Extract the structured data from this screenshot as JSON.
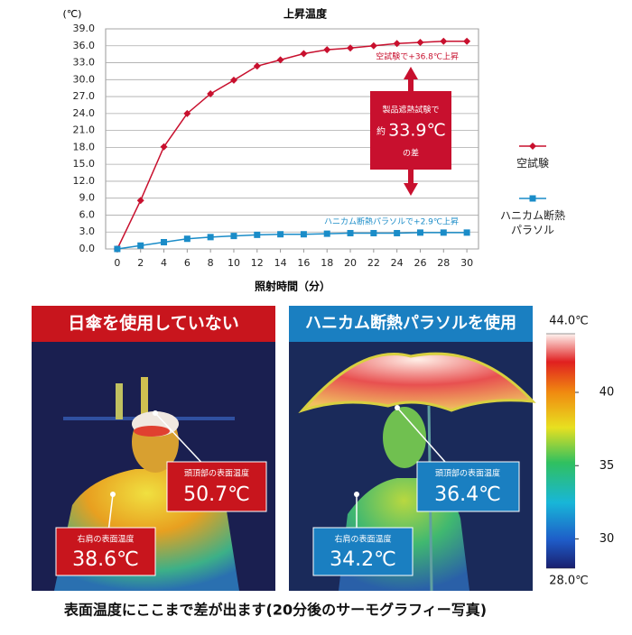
{
  "chart_data": {
    "type": "line",
    "title": "上昇温度",
    "y_unit_label": "(℃)",
    "x_label": "照射時間（分）",
    "x": [
      0,
      2,
      4,
      6,
      8,
      10,
      12,
      14,
      16,
      18,
      20,
      22,
      24,
      26,
      28,
      30
    ],
    "xlim": [
      -1,
      31
    ],
    "xticks": [
      0,
      2,
      4,
      6,
      8,
      10,
      12,
      14,
      16,
      18,
      20,
      22,
      24,
      26,
      28,
      30
    ],
    "ylim": [
      0,
      39
    ],
    "yticks": [
      {
        "value": 0,
        "label": "0.0"
      },
      {
        "value": 3,
        "label": "3.0"
      },
      {
        "value": 6,
        "label": "6.0"
      },
      {
        "value": 9,
        "label": "9.0"
      },
      {
        "value": 12,
        "label": "12.0"
      },
      {
        "value": 15,
        "label": "15.0"
      },
      {
        "value": 18,
        "label": "18.0"
      },
      {
        "value": 21,
        "label": "21.0"
      },
      {
        "value": 24,
        "label": "24.0"
      },
      {
        "value": 27,
        "label": "27.0"
      },
      {
        "value": 30,
        "label": "30.0"
      },
      {
        "value": 33,
        "label": "33.0"
      },
      {
        "value": 36,
        "label": "36.0"
      },
      {
        "value": 39,
        "label": "39.0"
      }
    ],
    "grid": true,
    "series": [
      {
        "name": "空試験",
        "color": "#c8102e",
        "marker": "diamond",
        "values": [
          0,
          8.6,
          18.1,
          24.0,
          27.5,
          29.9,
          32.4,
          33.5,
          34.6,
          35.3,
          35.6,
          36.0,
          36.4,
          36.6,
          36.8,
          36.8
        ]
      },
      {
        "name": "ハニカム断熱パラソル",
        "color": "#1a8cc8",
        "marker": "square",
        "values": [
          0,
          0.6,
          1.2,
          1.8,
          2.1,
          2.3,
          2.5,
          2.6,
          2.6,
          2.7,
          2.8,
          2.8,
          2.8,
          2.9,
          2.9,
          2.9
        ]
      }
    ],
    "annotations": [
      "空試験で+36.8℃上昇",
      "ハニカム断熱パラソルで+2.9℃上昇"
    ],
    "difference_box": {
      "line1": "製品遮熱試験で",
      "prefix": "約",
      "value": "33.9℃",
      "suffix": "の差"
    }
  },
  "panels": [
    {
      "title": "日傘を使用していない",
      "head_label": "頭頂部の表面温度",
      "head_value": "50.7℃",
      "shoulder_label": "右肩の表面温度",
      "shoulder_value": "38.6℃"
    },
    {
      "title": "ハニカム断熱パラソルを使用",
      "head_label": "頭頂部の表面温度",
      "head_value": "36.4℃",
      "shoulder_label": "右肩の表面温度",
      "shoulder_value": "34.2℃"
    }
  ],
  "colorbar": {
    "range": [
      28,
      44
    ],
    "ticks": [
      {
        "value": 44,
        "label": "44.0℃"
      },
      40,
      35,
      30,
      {
        "value": 28,
        "label": "28.0℃"
      }
    ]
  },
  "caption": "表面温度にここまで差が出ます(20分後のサーモグラフィー写真)"
}
